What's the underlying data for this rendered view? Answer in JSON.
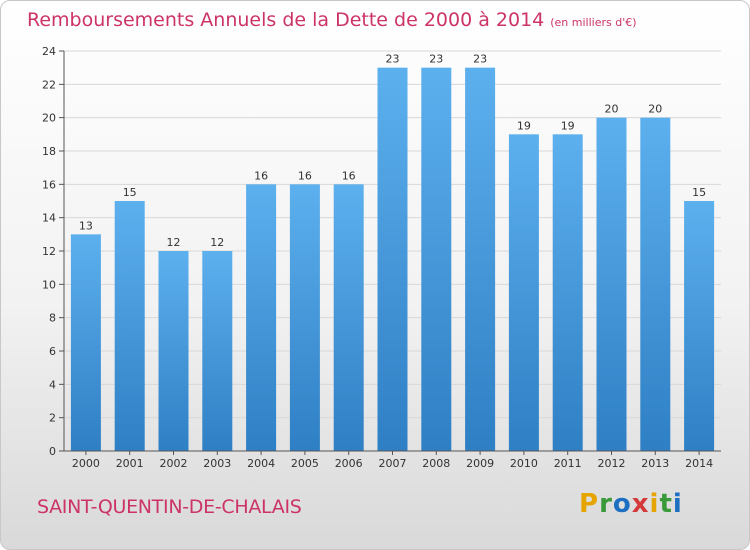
{
  "header": {
    "title": "Remboursements Annuels de la Dette de 2000 à 2014",
    "unit": "(en milliers d'€)"
  },
  "footer": {
    "city": "SAINT-QUENTIN-DE-CHALAIS"
  },
  "logo": {
    "letters": [
      "P",
      "r",
      "o",
      "x",
      "i",
      "t",
      "i"
    ],
    "colors": [
      "#e6a400",
      "#3a9a3a",
      "#1d6fc2",
      "#d43a3a",
      "#e6a400",
      "#3a9a3a",
      "#1d6fc2"
    ]
  },
  "chart_data": {
    "type": "bar",
    "categories": [
      "2000",
      "2001",
      "2002",
      "2003",
      "2004",
      "2005",
      "2006",
      "2007",
      "2008",
      "2009",
      "2010",
      "2011",
      "2012",
      "2013",
      "2014"
    ],
    "values": [
      13,
      15,
      12,
      12,
      16,
      16,
      16,
      23,
      23,
      23,
      19,
      19,
      20,
      20,
      15
    ],
    "data_labels": [
      "13",
      "15",
      "12",
      "12",
      "16",
      "16",
      "16",
      "23",
      "23",
      "23",
      "19",
      "19",
      "20",
      "20",
      "15"
    ],
    "title": "Remboursements Annuels de la Dette de 2000 à 2014",
    "ylim": [
      0,
      24
    ],
    "yticks": [
      0,
      2,
      4,
      6,
      8,
      10,
      12,
      14,
      16,
      18,
      20,
      22,
      24
    ],
    "grid": true,
    "bar_color": "#4a9fe0"
  }
}
